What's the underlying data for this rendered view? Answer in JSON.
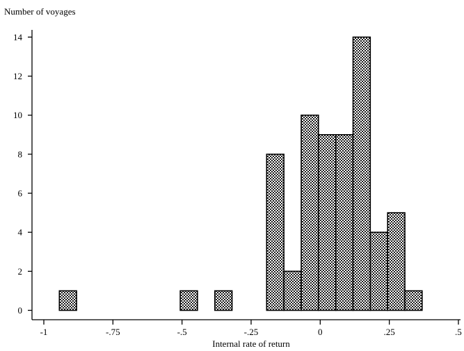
{
  "chart_data": {
    "type": "bar",
    "ylabel": "Number of voyages",
    "xlabel": "Internal rate of return",
    "x_ticks": [
      {
        "value": -1,
        "label": "-1"
      },
      {
        "value": -0.75,
        "label": "-.75"
      },
      {
        "value": -0.5,
        "label": "-.5"
      },
      {
        "value": -0.25,
        "label": "-.25"
      },
      {
        "value": 0,
        "label": "0"
      },
      {
        "value": 0.25,
        "label": ".25"
      },
      {
        "value": 0.5,
        "label": ".5"
      }
    ],
    "y_ticks": [
      {
        "value": 0,
        "label": "0"
      },
      {
        "value": 2,
        "label": "2"
      },
      {
        "value": 4,
        "label": "4"
      },
      {
        "value": 6,
        "label": "6"
      },
      {
        "value": 8,
        "label": "8"
      },
      {
        "value": 10,
        "label": "10"
      },
      {
        "value": 12,
        "label": "12"
      },
      {
        "value": 14,
        "label": "14"
      }
    ],
    "xlim": [
      -1.02,
      0.5
    ],
    "ylim": [
      0,
      14.3
    ],
    "bin_width": 0.0625,
    "bins": [
      {
        "x_start": -0.9438,
        "x_end": -0.8813,
        "count": 1
      },
      {
        "x_start": -0.5063,
        "x_end": -0.4438,
        "count": 1
      },
      {
        "x_start": -0.3813,
        "x_end": -0.3188,
        "count": 1
      },
      {
        "x_start": -0.1938,
        "x_end": -0.1313,
        "count": 8
      },
      {
        "x_start": -0.1313,
        "x_end": -0.0688,
        "count": 2
      },
      {
        "x_start": -0.0688,
        "x_end": -0.0063,
        "count": 10
      },
      {
        "x_start": -0.0063,
        "x_end": 0.0563,
        "count": 9
      },
      {
        "x_start": 0.0563,
        "x_end": 0.1188,
        "count": 9
      },
      {
        "x_start": 0.1188,
        "x_end": 0.1813,
        "count": 14
      },
      {
        "x_start": 0.1813,
        "x_end": 0.2438,
        "count": 4
      },
      {
        "x_start": 0.2438,
        "x_end": 0.3063,
        "count": 5
      },
      {
        "x_start": 0.3063,
        "x_end": 0.3688,
        "count": 1
      }
    ],
    "grid": false,
    "legend": "none"
  }
}
